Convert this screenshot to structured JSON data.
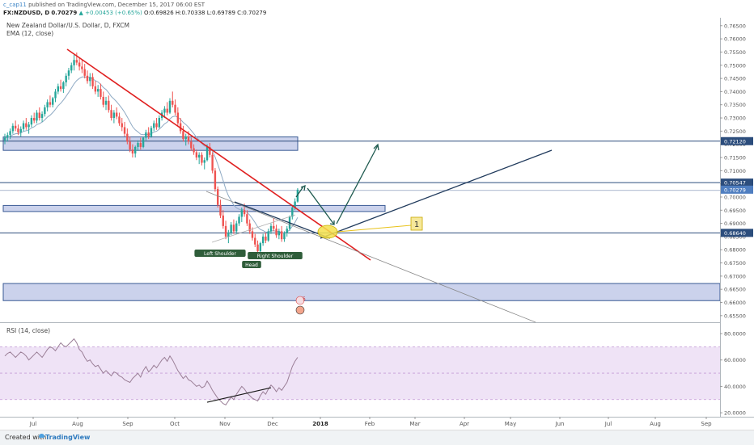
{
  "header": {
    "publisher": "c_cap11",
    "published_text": "published on TradingView.com, December 15, 2017 06:00 EST",
    "symbol": "FX:NZDUSD, D",
    "last": "0.70279",
    "change": "▲ +0.00453 (+0.65%)",
    "ohlc": "O:0.69826 H:0.70338 L:0.69789 C:0.70279"
  },
  "footer": {
    "created_with": "Created with",
    "brand": "TradingView"
  },
  "chart_data": [
    {
      "type": "candlestick",
      "title": "New Zealand Dollar/U.S. Dollar, D, FXCM",
      "indicator": "EMA (12, close)",
      "x_ticks": [
        "Jul",
        "Aug",
        "Sep",
        "Oct",
        "Nov",
        "Dec",
        "2018",
        "Feb",
        "Mar",
        "Apr",
        "May",
        "Jun",
        "Jul",
        "Aug",
        "Sep"
      ],
      "y_ticks": [
        "0.76500",
        "0.76000",
        "0.75500",
        "0.75000",
        "0.74500",
        "0.74000",
        "0.73500",
        "0.73000",
        "0.72500",
        "0.72000",
        "0.71500",
        "0.71000",
        "0.70500",
        "0.70000",
        "0.69500",
        "0.69000",
        "0.68500",
        "0.68000",
        "0.67500",
        "0.67000",
        "0.66500",
        "0.66000",
        "0.65500"
      ],
      "ylim": [
        0.6525,
        0.768
      ],
      "price_labels": [
        {
          "text": "0.72120",
          "value": 0.7212,
          "color": "#2c4d7c"
        },
        {
          "text": "0.70547",
          "value": 0.70547,
          "color": "#2c4d7c"
        },
        {
          "text": "0.70279",
          "value": 0.70279,
          "color": "#4f7ec0"
        },
        {
          "text": "0.68640",
          "value": 0.6864,
          "color": "#2c4d7c"
        }
      ],
      "zones": [
        {
          "from": 0.7177,
          "to": 0.7228
        },
        {
          "from": 0.6945,
          "to": 0.6968
        },
        {
          "from": 0.6607,
          "to": 0.6672
        }
      ],
      "horizontal_levels": [
        0.7212,
        0.70547,
        0.7025,
        0.6864
      ],
      "annotations": [
        "Left Shoulder",
        "Head",
        "Right Shoulder",
        "1"
      ],
      "events": [
        "5"
      ],
      "candles": [
        [
          0.7215,
          0.724,
          0.72,
          0.7225
        ],
        [
          0.7225,
          0.7245,
          0.721,
          0.7235
        ],
        [
          0.7235,
          0.726,
          0.722,
          0.725
        ],
        [
          0.725,
          0.728,
          0.724,
          0.727
        ],
        [
          0.727,
          0.729,
          0.725,
          0.726
        ],
        [
          0.726,
          0.7275,
          0.7235,
          0.7245
        ],
        [
          0.7245,
          0.7268,
          0.723,
          0.7258
        ],
        [
          0.7258,
          0.729,
          0.725,
          0.728
        ],
        [
          0.728,
          0.73,
          0.7255,
          0.7265
        ],
        [
          0.7265,
          0.7285,
          0.724,
          0.7275
        ],
        [
          0.7275,
          0.731,
          0.7265,
          0.73
        ],
        [
          0.73,
          0.732,
          0.728,
          0.729
        ],
        [
          0.729,
          0.733,
          0.728,
          0.732
        ],
        [
          0.732,
          0.734,
          0.729,
          0.73
        ],
        [
          0.73,
          0.7325,
          0.7285,
          0.7315
        ],
        [
          0.7315,
          0.735,
          0.7305,
          0.734
        ],
        [
          0.734,
          0.737,
          0.7325,
          0.736
        ],
        [
          0.736,
          0.7385,
          0.734,
          0.735
        ],
        [
          0.735,
          0.738,
          0.734,
          0.7375
        ],
        [
          0.7375,
          0.741,
          0.736,
          0.74
        ],
        [
          0.74,
          0.743,
          0.739,
          0.742
        ],
        [
          0.742,
          0.7445,
          0.74,
          0.741
        ],
        [
          0.741,
          0.744,
          0.7395,
          0.7435
        ],
        [
          0.7435,
          0.747,
          0.742,
          0.746
        ],
        [
          0.746,
          0.749,
          0.7445,
          0.748
        ],
        [
          0.748,
          0.751,
          0.747,
          0.75
        ],
        [
          0.75,
          0.754,
          0.748,
          0.752
        ],
        [
          0.752,
          0.7548,
          0.75,
          0.751
        ],
        [
          0.751,
          0.753,
          0.748,
          0.7495
        ],
        [
          0.7495,
          0.752,
          0.747,
          0.7485
        ],
        [
          0.7485,
          0.7505,
          0.745,
          0.746
        ],
        [
          0.746,
          0.748,
          0.743,
          0.744
        ],
        [
          0.744,
          0.747,
          0.742,
          0.7455
        ],
        [
          0.7455,
          0.747,
          0.741,
          0.742
        ],
        [
          0.742,
          0.744,
          0.739,
          0.74
        ],
        [
          0.74,
          0.7425,
          0.738,
          0.741
        ],
        [
          0.741,
          0.743,
          0.737,
          0.738
        ],
        [
          0.738,
          0.74,
          0.734,
          0.735
        ],
        [
          0.735,
          0.738,
          0.733,
          0.7365
        ],
        [
          0.7365,
          0.7385,
          0.732,
          0.733
        ],
        [
          0.733,
          0.735,
          0.729,
          0.73
        ],
        [
          0.73,
          0.733,
          0.728,
          0.732
        ],
        [
          0.732,
          0.734,
          0.7295,
          0.7305
        ],
        [
          0.7305,
          0.732,
          0.727,
          0.728
        ],
        [
          0.728,
          0.73,
          0.725,
          0.7265
        ],
        [
          0.7265,
          0.7285,
          0.723,
          0.724
        ],
        [
          0.724,
          0.726,
          0.72,
          0.721
        ],
        [
          0.721,
          0.723,
          0.717,
          0.718
        ],
        [
          0.718,
          0.72,
          0.715,
          0.7165
        ],
        [
          0.7165,
          0.7195,
          0.715,
          0.719
        ],
        [
          0.719,
          0.7215,
          0.7175,
          0.7205
        ],
        [
          0.7205,
          0.7225,
          0.718,
          0.719
        ],
        [
          0.719,
          0.723,
          0.7185,
          0.7225
        ],
        [
          0.7225,
          0.7255,
          0.7215,
          0.7245
        ],
        [
          0.7245,
          0.7265,
          0.722,
          0.723
        ],
        [
          0.723,
          0.727,
          0.7225,
          0.7262
        ],
        [
          0.7262,
          0.729,
          0.725,
          0.728
        ],
        [
          0.728,
          0.73,
          0.7255,
          0.7265
        ],
        [
          0.7265,
          0.731,
          0.726,
          0.73
        ],
        [
          0.73,
          0.733,
          0.729,
          0.732
        ],
        [
          0.732,
          0.7345,
          0.73,
          0.7335
        ],
        [
          0.7335,
          0.736,
          0.731,
          0.732
        ],
        [
          0.732,
          0.7375,
          0.7315,
          0.7365
        ],
        [
          0.7365,
          0.74,
          0.734,
          0.735
        ],
        [
          0.735,
          0.737,
          0.731,
          0.732
        ],
        [
          0.732,
          0.734,
          0.727,
          0.728
        ],
        [
          0.728,
          0.73,
          0.724,
          0.725
        ],
        [
          0.725,
          0.727,
          0.721,
          0.722
        ],
        [
          0.722,
          0.724,
          0.7195,
          0.723
        ],
        [
          0.723,
          0.725,
          0.72,
          0.721
        ],
        [
          0.721,
          0.7225,
          0.7175,
          0.7185
        ],
        [
          0.7185,
          0.72,
          0.716,
          0.717
        ],
        [
          0.717,
          0.718,
          0.714,
          0.715
        ],
        [
          0.715,
          0.717,
          0.7125,
          0.716
        ],
        [
          0.716,
          0.717,
          0.712,
          0.713
        ],
        [
          0.713,
          0.715,
          0.7105,
          0.714
        ],
        [
          0.714,
          0.72,
          0.7135,
          0.719
        ],
        [
          0.719,
          0.7205,
          0.715,
          0.716
        ],
        [
          0.716,
          0.717,
          0.709,
          0.71
        ],
        [
          0.71,
          0.711,
          0.702,
          0.703
        ],
        [
          0.703,
          0.704,
          0.696,
          0.697
        ],
        [
          0.697,
          0.699,
          0.692,
          0.693
        ],
        [
          0.693,
          0.695,
          0.688,
          0.689
        ],
        [
          0.689,
          0.691,
          0.684,
          0.685
        ],
        [
          0.685,
          0.6875,
          0.6825,
          0.6865
        ],
        [
          0.6865,
          0.6905,
          0.6855,
          0.6895
        ],
        [
          0.6895,
          0.6915,
          0.686,
          0.687
        ],
        [
          0.687,
          0.691,
          0.686,
          0.69
        ],
        [
          0.69,
          0.6935,
          0.689,
          0.6925
        ],
        [
          0.6925,
          0.696,
          0.6905,
          0.695
        ],
        [
          0.695,
          0.6975,
          0.6925,
          0.6935
        ],
        [
          0.6935,
          0.695,
          0.689,
          0.69
        ],
        [
          0.69,
          0.6915,
          0.686,
          0.687
        ],
        [
          0.687,
          0.6885,
          0.6835,
          0.6845
        ],
        [
          0.6845,
          0.686,
          0.681,
          0.682
        ],
        [
          0.682,
          0.6835,
          0.6785,
          0.6795
        ],
        [
          0.6795,
          0.683,
          0.679,
          0.6825
        ],
        [
          0.6825,
          0.686,
          0.6815,
          0.685
        ],
        [
          0.685,
          0.6865,
          0.6825,
          0.6835
        ],
        [
          0.6835,
          0.688,
          0.683,
          0.687
        ],
        [
          0.687,
          0.69,
          0.686,
          0.689
        ],
        [
          0.689,
          0.692,
          0.687,
          0.688
        ],
        [
          0.688,
          0.6895,
          0.6845,
          0.6855
        ],
        [
          0.6855,
          0.688,
          0.684,
          0.687
        ],
        [
          0.687,
          0.689,
          0.683,
          0.684
        ],
        [
          0.684,
          0.687,
          0.683,
          0.6862
        ],
        [
          0.6862,
          0.689,
          0.685,
          0.688
        ],
        [
          0.688,
          0.693,
          0.6872,
          0.6925
        ],
        [
          0.6925,
          0.697,
          0.6915,
          0.696
        ],
        [
          0.696,
          0.6995,
          0.695,
          0.6983
        ],
        [
          0.69826,
          0.70338,
          0.69789,
          0.70279
        ]
      ]
    },
    {
      "type": "line",
      "title": "RSI (14, close)",
      "y_ticks": [
        "80.0000",
        "60.0000",
        "40.0000",
        "20.0000"
      ],
      "ylim": [
        17,
        88
      ],
      "band": [
        30,
        70
      ],
      "values": [
        63,
        65,
        66,
        64,
        62,
        64,
        66,
        65,
        63,
        60,
        62,
        64,
        66,
        64,
        62,
        65,
        68,
        70,
        69,
        67,
        70,
        73,
        71,
        70,
        72,
        74,
        76,
        73,
        68,
        66,
        62,
        59,
        60,
        57,
        55,
        56,
        53,
        50,
        52,
        50,
        48,
        51,
        50,
        48,
        47,
        45,
        44,
        43,
        46,
        48,
        50,
        47,
        52,
        55,
        51,
        53,
        56,
        54,
        57,
        60,
        62,
        59,
        63,
        60,
        56,
        52,
        49,
        46,
        48,
        45,
        44,
        42,
        40,
        41,
        39,
        40,
        44,
        41,
        37,
        34,
        31,
        29,
        27,
        26,
        29,
        32,
        30,
        34,
        37,
        40,
        38,
        35,
        33,
        31,
        30,
        29,
        33,
        36,
        34,
        38,
        41,
        39,
        36,
        39,
        37,
        40,
        43,
        49,
        55,
        59,
        62
      ]
    }
  ]
}
